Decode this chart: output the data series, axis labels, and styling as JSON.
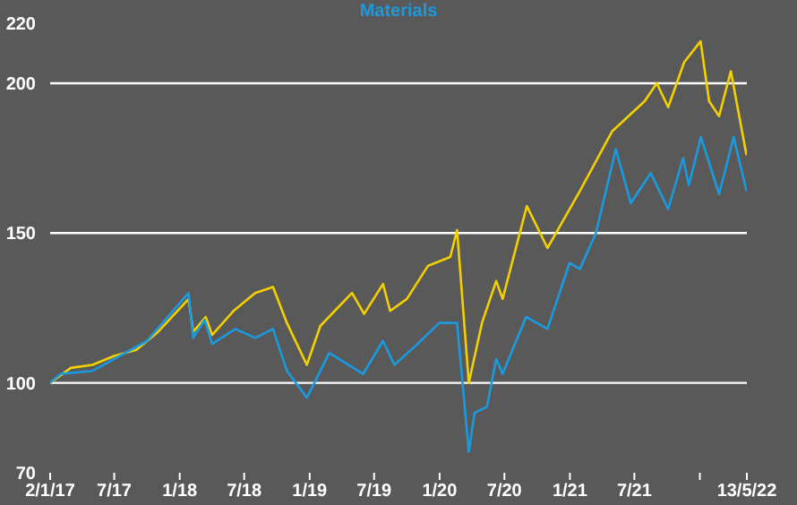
{
  "chart_data": {
    "type": "line",
    "legend": "top",
    "grid": "y",
    "line_style": "solid",
    "marker": "none",
    "xlim": [
      "2017-01-02",
      "2022-05-13"
    ],
    "xticks": [
      {
        "value": "2017-01-02",
        "label": "2/1/17"
      },
      {
        "value": "2017-07-01",
        "label": "7/17"
      },
      {
        "value": "2018-01-01",
        "label": "1/18"
      },
      {
        "value": "2018-07-01",
        "label": "7/18"
      },
      {
        "value": "2019-01-01",
        "label": "1/19"
      },
      {
        "value": "2019-07-01",
        "label": "7/19"
      },
      {
        "value": "2020-01-01",
        "label": "1/20"
      },
      {
        "value": "2020-07-01",
        "label": "7/20"
      },
      {
        "value": "2021-01-01",
        "label": "1/21"
      },
      {
        "value": "2021-07-01",
        "label": "7/21"
      },
      {
        "value": "2022-01-01",
        "label": null
      },
      {
        "value": "2022-05-13",
        "label": "13/5/22"
      }
    ],
    "ylim": [
      70,
      220
    ],
    "yticks": [
      70,
      100,
      150,
      200,
      220
    ],
    "series": [
      {
        "color": "#f5d000",
        "x": [
          "2017-01-02",
          "2017-03-01",
          "2017-05-01",
          "2017-07-01",
          "2017-09-01",
          "2017-11-01",
          "2018-01-26",
          "2018-02-08",
          "2018-03-15",
          "2018-04-02",
          "2018-06-01",
          "2018-08-01",
          "2018-09-20",
          "2018-10-29",
          "2018-12-24",
          "2019-01-31",
          "2019-04-30",
          "2019-06-03",
          "2019-07-26",
          "2019-08-15",
          "2019-10-01",
          "2019-11-29",
          "2020-01-31",
          "2020-02-19",
          "2020-03-23",
          "2020-04-29",
          "2020-06-08",
          "2020-06-26",
          "2020-09-02",
          "2020-10-30",
          "2021-01-29",
          "2021-04-30",
          "2021-07-30",
          "2021-09-02",
          "2021-10-04",
          "2021-11-18",
          "2022-01-03",
          "2022-01-27",
          "2022-02-24",
          "2022-03-29",
          "2022-05-12"
        ],
        "values": [
          100,
          105,
          106,
          109,
          111,
          117,
          128,
          117,
          122,
          116,
          124,
          130,
          132,
          120,
          106,
          119,
          130,
          123,
          133,
          124,
          128,
          139,
          142,
          151,
          100,
          120,
          134,
          128,
          159,
          145,
          164,
          184,
          194,
          200,
          192,
          207,
          214,
          194,
          189,
          204,
          176
        ]
      },
      {
        "name": "Materials",
        "color": "#1a9be0",
        "x": [
          "2017-01-02",
          "2017-02-01",
          "2017-05-01",
          "2017-07-01",
          "2017-10-01",
          "2018-01-26",
          "2018-02-08",
          "2018-03-12",
          "2018-04-02",
          "2018-06-06",
          "2018-08-01",
          "2018-09-20",
          "2018-10-29",
          "2018-12-24",
          "2019-02-25",
          "2019-05-31",
          "2019-07-26",
          "2019-08-27",
          "2019-10-31",
          "2019-12-31",
          "2020-02-19",
          "2020-03-23",
          "2020-04-08",
          "2020-05-13",
          "2020-06-08",
          "2020-06-26",
          "2020-08-31",
          "2020-10-30",
          "2020-12-31",
          "2021-01-29",
          "2021-03-15",
          "2021-05-10",
          "2021-06-21",
          "2021-08-16",
          "2021-10-04",
          "2021-11-15",
          "2021-12-01",
          "2022-01-04",
          "2022-02-24",
          "2022-04-06",
          "2022-05-12"
        ],
        "values": [
          100,
          103,
          104,
          108,
          114,
          130,
          115,
          121,
          113,
          118,
          115,
          118,
          104,
          95,
          110,
          103,
          114,
          106,
          113,
          120,
          120,
          77,
          90,
          92,
          108,
          103,
          122,
          118,
          140,
          138,
          150,
          178,
          160,
          170,
          158,
          175,
          166,
          182,
          163,
          182,
          164
        ]
      }
    ]
  }
}
